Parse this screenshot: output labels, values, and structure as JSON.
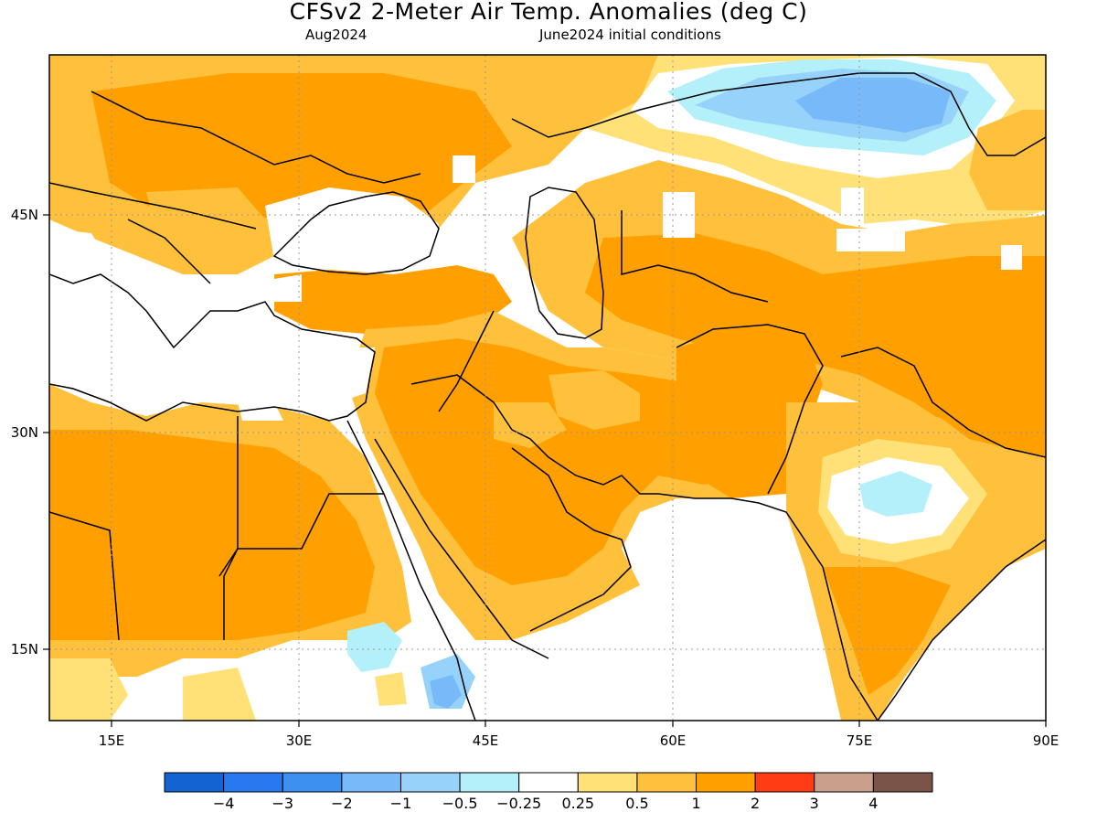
{
  "header": {
    "title": "CFSv2 2-Meter Air Temp. Anomalies (deg C)",
    "valid_month": "Aug2024",
    "init": "June2024 initial conditions"
  },
  "axes": {
    "lon_ticks": [
      "15E",
      "30E",
      "45E",
      "60E",
      "75E",
      "90E"
    ],
    "lat_ticks": [
      "45N",
      "30N",
      "15N"
    ]
  },
  "map": {
    "lon_range": [
      10,
      90
    ],
    "lat_range": [
      10,
      56
    ],
    "grid": "dotted"
  },
  "colorbar": {
    "colors": [
      "#1463d2",
      "#2878f0",
      "#3c91f0",
      "#78b9fa",
      "#96d2fa",
      "#b4f0fa",
      "#ffffff",
      "#ffe178",
      "#ffc03c",
      "#ffa000",
      "#ff3c14",
      "#c8a08c",
      "#7a5448"
    ],
    "labels": [
      "-4",
      "-3",
      "-2",
      "-1",
      "-0.5",
      "-0.25",
      "0.25",
      "0.5",
      "1",
      "2",
      "3",
      "4"
    ]
  }
}
